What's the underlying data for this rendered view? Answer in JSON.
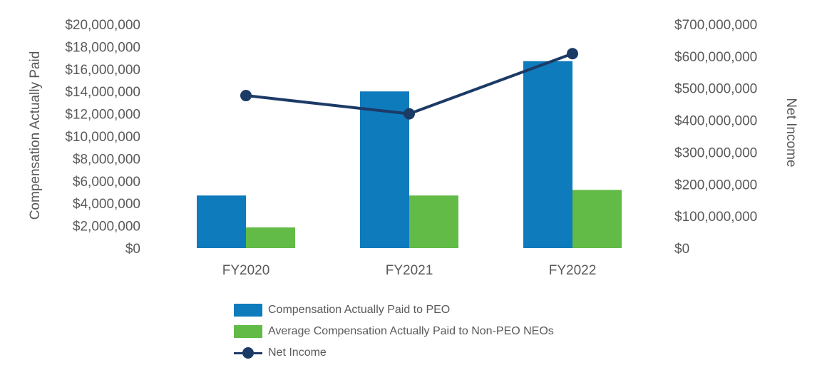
{
  "chart_data": {
    "type": "bar",
    "categories": [
      "FY2020",
      "FY2021",
      "FY2022"
    ],
    "series": [
      {
        "name": "Compensation Actually Paid to PEO",
        "kind": "bar",
        "axis": "left",
        "values": [
          4700000,
          14000000,
          16700000
        ],
        "color": "#0e7bbd"
      },
      {
        "name": "Average Compensation Actually Paid to Non-PEO NEOs",
        "kind": "bar",
        "axis": "left",
        "values": [
          1850000,
          4700000,
          5200000
        ],
        "color": "#62bb47"
      },
      {
        "name": "Net Income",
        "kind": "line",
        "axis": "right",
        "values": [
          477000000,
          420000000,
          608000000
        ],
        "color": "#1c3a66"
      }
    ],
    "ylabel": "Compensation Actually Paid",
    "y2label": "Net Income",
    "ylim": [
      0,
      20000000
    ],
    "y2lim": [
      0,
      700000000
    ],
    "yticks": [
      "$0",
      "$2,000,000",
      "$4,000,000",
      "$6,000,000",
      "$8,000,000",
      "$10,000,000",
      "$12,000,000",
      "$14,000,000",
      "$16,000,000",
      "$18,000,000",
      "$20,000,000"
    ],
    "y2ticks": [
      "$0",
      "$100,000,000",
      "$200,000,000",
      "$300,000,000",
      "$400,000,000",
      "$500,000,000",
      "$600,000,000",
      "$700,000,000"
    ],
    "grid": false,
    "legend_position": "bottom"
  }
}
